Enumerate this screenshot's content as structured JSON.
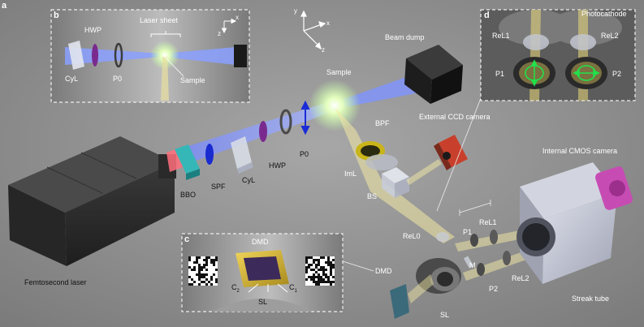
{
  "figure_label": "a",
  "components": {
    "femtosecond_laser": "Femtosecond laser",
    "bbo": "BBO",
    "spf": "SPF",
    "cyl": "CyL",
    "hwp": "HWP",
    "p0": "P0",
    "sample": "Sample",
    "beam_dump": "Beam dump",
    "bpf": "BPF",
    "external_ccd": "External CCD camera",
    "iml": "ImL",
    "bs": "BS",
    "internal_cmos": "Internal CMOS camera",
    "rel0": "ReL0",
    "p1": "P1",
    "rel1": "ReL1",
    "m": "M",
    "p2": "P2",
    "rel2": "ReL2",
    "dmd": "DMD",
    "sl": "SL",
    "streak_tube": "Streak tube"
  },
  "axes": {
    "y": "y",
    "x": "x",
    "z": "z"
  },
  "inset_b": {
    "label": "b",
    "laser_sheet": "Laser sheet",
    "hwp": "HWP",
    "cyl": "CyL",
    "p0": "P0",
    "sample": "Sample",
    "axis_x": "x",
    "axis_z": "z"
  },
  "inset_c": {
    "label": "c",
    "dmd": "DMD",
    "c2": "C",
    "c2_sub": "2",
    "c1": "C",
    "c1_sub": "1",
    "sl": "SL"
  },
  "inset_d": {
    "label": "d",
    "photocathode": "Photocathode",
    "rel1": "ReL1",
    "rel2": "ReL2",
    "p1": "P1",
    "p2": "P2"
  },
  "colors": {
    "background": "#8d8d8d",
    "beam_blue": "#6f8dff",
    "beam_red": "#ff6f7c",
    "sample_glow": "#eaffc0",
    "signal_yellow": "#f3eaa4",
    "inset_border": "#eeeeee",
    "polarization_arrow": "#1b2dd6",
    "green_marker": "#22e04a",
    "hwp_purple": "#7a2a8e",
    "ccd_red": "#c8402c",
    "cmos_pink": "#c64cb4",
    "bpf_yellow": "#c9b41a",
    "bbo_teal": "#36b7b7"
  }
}
